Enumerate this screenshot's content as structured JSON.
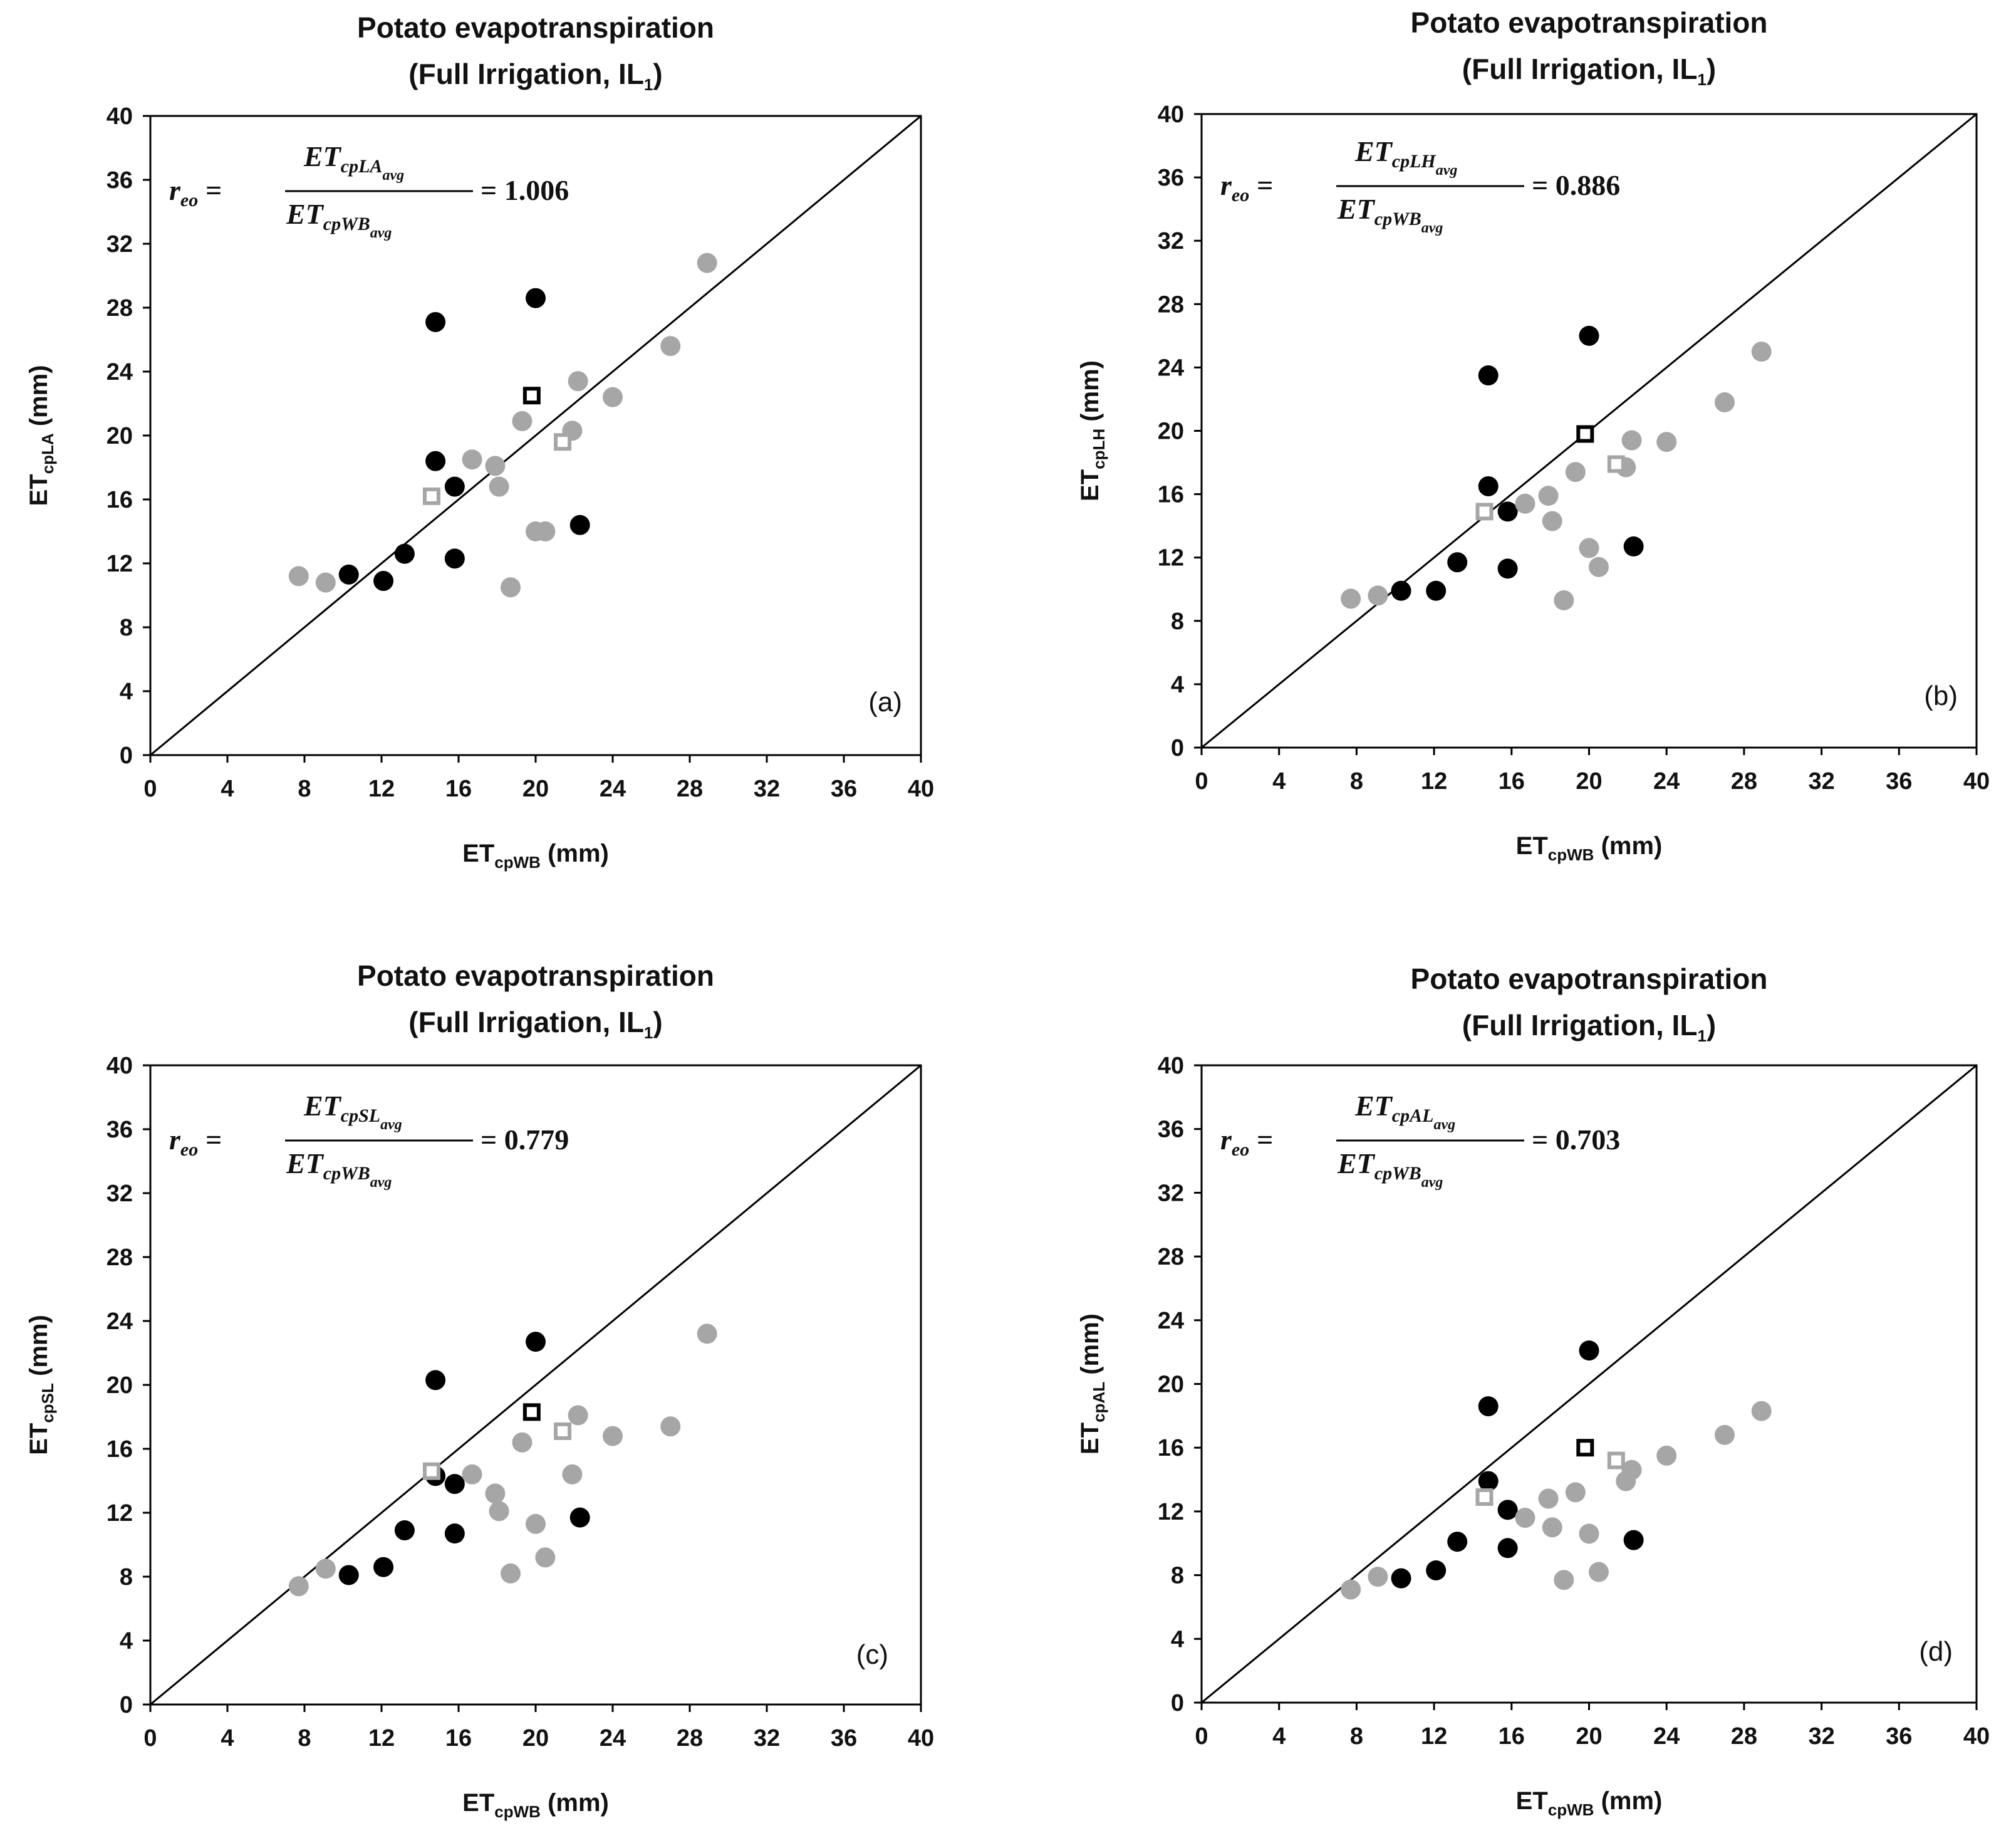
{
  "figure": {
    "description_tag": "4-panel scatter comparison"
  },
  "colors": {
    "black_points": "#000000",
    "gray_points": "#a6a6a6",
    "frame": "#000000"
  },
  "chart_data": [
    {
      "type": "scatter",
      "panel": "(a)",
      "title_line1": "Potato evapotranspiration",
      "title_line2_prefix": "(Full Irrigation, IL",
      "title_line2_sub": "1",
      "title_line2_suffix": ")",
      "xlabel_main": "ET",
      "xlabel_sub": "cpWB",
      "xlabel_unit": " (mm)",
      "ylabel_main": "ET",
      "ylabel_sub": "cpLA",
      "ylabel_unit": " (mm)",
      "xlim": [
        0,
        40
      ],
      "ylim": [
        0,
        40
      ],
      "ticks": [
        0,
        4,
        8,
        12,
        16,
        20,
        24,
        28,
        32,
        36,
        40
      ],
      "ratio": {
        "lhs": "r",
        "lhs_sub": "eo",
        "num_main": "ET",
        "num_sub": "cpLA",
        "num_sub2": "avg",
        "den_main": "ET",
        "den_sub": "cpWB",
        "den_sub2": "avg",
        "value": "= 1.006"
      },
      "series": [
        {
          "name": "black",
          "marker": "circle",
          "color": "#000000",
          "points": [
            [
              14.8,
              27.1
            ],
            [
              20.0,
              28.6
            ],
            [
              14.8,
              18.4
            ],
            [
              15.8,
              16.8
            ],
            [
              10.3,
              11.3
            ],
            [
              12.1,
              10.9
            ],
            [
              13.2,
              12.6
            ],
            [
              15.8,
              12.3
            ],
            [
              22.3,
              14.4
            ]
          ]
        },
        {
          "name": "gray",
          "marker": "circle",
          "color": "#a6a6a6",
          "points": [
            [
              7.7,
              11.2
            ],
            [
              9.1,
              10.8
            ],
            [
              16.7,
              18.5
            ],
            [
              17.9,
              18.1
            ],
            [
              18.1,
              16.8
            ],
            [
              19.3,
              20.9
            ],
            [
              18.7,
              10.5
            ],
            [
              20.0,
              14.0
            ],
            [
              20.5,
              14.0
            ],
            [
              21.9,
              20.3
            ],
            [
              22.2,
              23.4
            ],
            [
              24.0,
              22.4
            ],
            [
              27.0,
              25.6
            ],
            [
              28.9,
              30.8
            ]
          ]
        },
        {
          "name": "black-avg",
          "marker": "square",
          "color": "#000000",
          "points": [
            [
              19.8,
              22.5
            ]
          ]
        },
        {
          "name": "gray-avg",
          "marker": "square",
          "color": "#a6a6a6",
          "points": [
            [
              14.6,
              16.2
            ],
            [
              21.4,
              19.6
            ]
          ]
        }
      ]
    },
    {
      "type": "scatter",
      "panel": "(b)",
      "title_line1": "Potato evapotranspiration",
      "title_line2_prefix": "(Full Irrigation, IL",
      "title_line2_sub": "1",
      "title_line2_suffix": ")",
      "xlabel_main": "ET",
      "xlabel_sub": "cpWB",
      "xlabel_unit": " (mm)",
      "ylabel_main": "ET",
      "ylabel_sub": "cpLH",
      "ylabel_unit": " (mm)",
      "xlim": [
        0,
        40
      ],
      "ylim": [
        0,
        40
      ],
      "ticks": [
        0,
        4,
        8,
        12,
        16,
        20,
        24,
        28,
        32,
        36,
        40
      ],
      "ratio": {
        "lhs": "r",
        "lhs_sub": "eo",
        "num_main": "ET",
        "num_sub": "cpLH",
        "num_sub2": "avg",
        "den_main": "ET",
        "den_sub": "cpWB",
        "den_sub2": "avg",
        "value": "= 0.886"
      },
      "series": [
        {
          "name": "black",
          "marker": "circle",
          "color": "#000000",
          "points": [
            [
              14.8,
              23.5
            ],
            [
              20.0,
              26.0
            ],
            [
              14.8,
              16.5
            ],
            [
              15.8,
              14.9
            ],
            [
              10.3,
              9.9
            ],
            [
              12.1,
              9.9
            ],
            [
              13.2,
              11.7
            ],
            [
              15.8,
              11.3
            ],
            [
              22.3,
              12.7
            ]
          ]
        },
        {
          "name": "gray",
          "marker": "circle",
          "color": "#a6a6a6",
          "points": [
            [
              7.7,
              9.4
            ],
            [
              9.1,
              9.6
            ],
            [
              16.7,
              15.4
            ],
            [
              17.9,
              15.9
            ],
            [
              18.1,
              14.3
            ],
            [
              19.3,
              17.4
            ],
            [
              18.7,
              9.3
            ],
            [
              20.0,
              12.6
            ],
            [
              20.5,
              11.4
            ],
            [
              21.9,
              17.7
            ],
            [
              22.2,
              19.4
            ],
            [
              24.0,
              19.3
            ],
            [
              27.0,
              21.8
            ],
            [
              28.9,
              25.0
            ]
          ]
        },
        {
          "name": "black-avg",
          "marker": "square",
          "color": "#000000",
          "points": [
            [
              19.8,
              19.8
            ]
          ]
        },
        {
          "name": "gray-avg",
          "marker": "square",
          "color": "#a6a6a6",
          "points": [
            [
              14.6,
              14.9
            ],
            [
              21.4,
              17.9
            ]
          ]
        }
      ]
    },
    {
      "type": "scatter",
      "panel": "(c)",
      "title_line1": "Potato evapotranspiration",
      "title_line2_prefix": "(Full Irrigation, IL",
      "title_line2_sub": "1",
      "title_line2_suffix": ")",
      "xlabel_main": "ET",
      "xlabel_sub": "cpWB",
      "xlabel_unit": " (mm)",
      "ylabel_main": "ET",
      "ylabel_sub": "cpSL",
      "ylabel_unit": " (mm)",
      "xlim": [
        0,
        40
      ],
      "ylim": [
        0,
        40
      ],
      "ticks": [
        0,
        4,
        8,
        12,
        16,
        20,
        24,
        28,
        32,
        36,
        40
      ],
      "ratio": {
        "lhs": "r",
        "lhs_sub": "eo",
        "num_main": "ET",
        "num_sub": "cpSL",
        "num_sub2": "avg",
        "den_main": "ET",
        "den_sub": "cpWB",
        "den_sub2": "avg",
        "value": "= 0.779"
      },
      "series": [
        {
          "name": "black",
          "marker": "circle",
          "color": "#000000",
          "points": [
            [
              14.8,
              20.3
            ],
            [
              20.0,
              22.7
            ],
            [
              14.8,
              14.3
            ],
            [
              15.8,
              13.8
            ],
            [
              10.3,
              8.1
            ],
            [
              12.1,
              8.6
            ],
            [
              13.2,
              10.9
            ],
            [
              15.8,
              10.7
            ],
            [
              22.3,
              11.7
            ]
          ]
        },
        {
          "name": "gray",
          "marker": "circle",
          "color": "#a6a6a6",
          "points": [
            [
              7.7,
              7.4
            ],
            [
              9.1,
              8.5
            ],
            [
              16.7,
              14.4
            ],
            [
              17.9,
              13.2
            ],
            [
              18.1,
              12.1
            ],
            [
              19.3,
              16.4
            ],
            [
              18.7,
              8.2
            ],
            [
              20.0,
              11.3
            ],
            [
              20.5,
              9.2
            ],
            [
              21.9,
              14.4
            ],
            [
              22.2,
              18.1
            ],
            [
              24.0,
              16.8
            ],
            [
              27.0,
              17.4
            ],
            [
              28.9,
              23.2
            ]
          ]
        },
        {
          "name": "black-avg",
          "marker": "square",
          "color": "#000000",
          "points": [
            [
              19.8,
              18.3
            ]
          ]
        },
        {
          "name": "gray-avg",
          "marker": "square",
          "color": "#a6a6a6",
          "points": [
            [
              14.6,
              14.6
            ],
            [
              21.4,
              17.1
            ]
          ]
        }
      ]
    },
    {
      "type": "scatter",
      "panel": "(d)",
      "title_line1": "Potato evapotranspiration",
      "title_line2_prefix": "(Full Irrigation, IL",
      "title_line2_sub": "1",
      "title_line2_suffix": ")",
      "xlabel_main": "ET",
      "xlabel_sub": "cpWB",
      "xlabel_unit": " (mm)",
      "ylabel_main": "ET",
      "ylabel_sub": "cpAL",
      "ylabel_unit": " (mm)",
      "xlim": [
        0,
        40
      ],
      "ylim": [
        0,
        40
      ],
      "ticks": [
        0,
        4,
        8,
        12,
        16,
        20,
        24,
        28,
        32,
        36,
        40
      ],
      "ratio": {
        "lhs": "r",
        "lhs_sub": "eo",
        "num_main": "ET",
        "num_sub": "cpAL",
        "num_sub2": "avg",
        "den_main": "ET",
        "den_sub": "cpWB",
        "den_sub2": "avg",
        "value": "= 0.703"
      },
      "series": [
        {
          "name": "black",
          "marker": "circle",
          "color": "#000000",
          "points": [
            [
              14.8,
              18.6
            ],
            [
              20.0,
              22.1
            ],
            [
              14.8,
              13.9
            ],
            [
              15.8,
              12.1
            ],
            [
              10.3,
              7.8
            ],
            [
              12.1,
              8.3
            ],
            [
              13.2,
              10.1
            ],
            [
              15.8,
              9.7
            ],
            [
              22.3,
              10.2
            ]
          ]
        },
        {
          "name": "gray",
          "marker": "circle",
          "color": "#a6a6a6",
          "points": [
            [
              7.7,
              7.1
            ],
            [
              9.1,
              7.9
            ],
            [
              16.7,
              11.6
            ],
            [
              17.9,
              12.8
            ],
            [
              18.1,
              11.0
            ],
            [
              19.3,
              13.2
            ],
            [
              18.7,
              7.7
            ],
            [
              20.0,
              10.6
            ],
            [
              20.5,
              8.2
            ],
            [
              21.9,
              13.9
            ],
            [
              22.2,
              14.6
            ],
            [
              24.0,
              15.5
            ],
            [
              27.0,
              16.8
            ],
            [
              28.9,
              18.3
            ]
          ]
        },
        {
          "name": "black-avg",
          "marker": "square",
          "color": "#000000",
          "points": [
            [
              19.8,
              16.0
            ]
          ]
        },
        {
          "name": "gray-avg",
          "marker": "square",
          "color": "#a6a6a6",
          "points": [
            [
              14.6,
              12.9
            ],
            [
              21.4,
              15.2
            ]
          ]
        }
      ]
    }
  ]
}
